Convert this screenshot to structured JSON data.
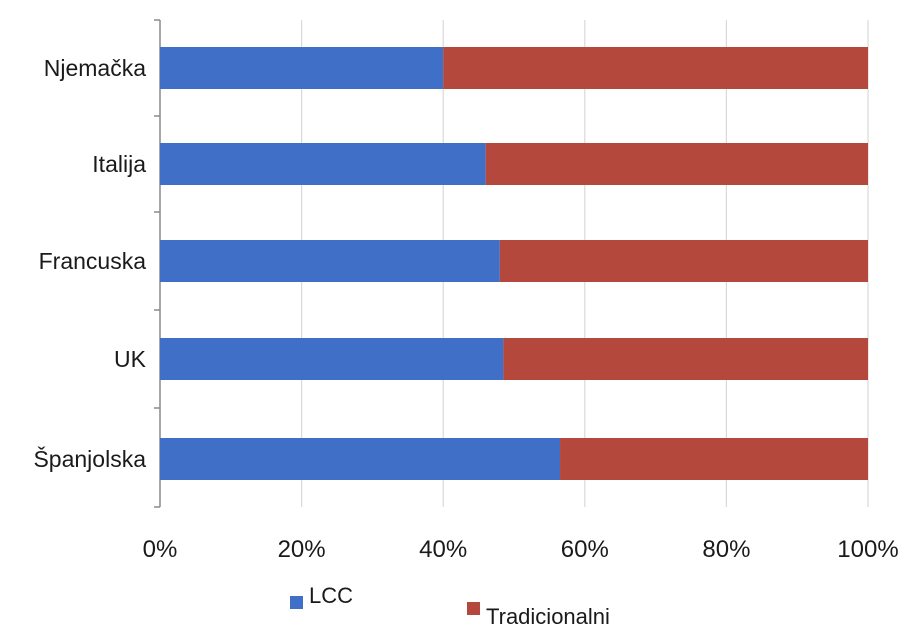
{
  "chart_data": {
    "type": "bar",
    "orientation": "horizontal",
    "stacked": "percent",
    "categories": [
      "Njemačka",
      "Italija",
      "Francuska",
      "UK",
      "Španjolska"
    ],
    "series": [
      {
        "name": "LCC",
        "values": [
          40,
          46,
          48,
          48.5,
          56.5
        ],
        "color": "#3F6FC6"
      },
      {
        "name": "Tradicionalni",
        "values": [
          60,
          54,
          52,
          51.5,
          43.5
        ],
        "color": "#B5483D"
      }
    ],
    "x_ticks": [
      "0%",
      "20%",
      "40%",
      "60%",
      "80%",
      "100%"
    ],
    "xlim": [
      0,
      100
    ],
    "grid": "vertical",
    "legend_position": "bottom"
  }
}
